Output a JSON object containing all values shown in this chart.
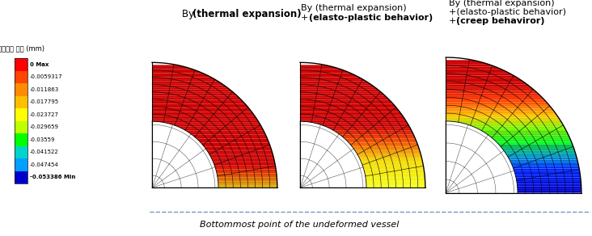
{
  "bg_color": "#ffffff",
  "colorbar_label": "수직방향 변위 (mm)",
  "colorbar_values": [
    "0 Max",
    "-0.0059317",
    "-0.011863",
    "-0.017795",
    "-0.023727",
    "-0.029659",
    "-0.03559",
    "-0.041522",
    "-0.047454",
    "-0.053386 Min"
  ],
  "colorbar_colors": [
    "#ff0000",
    "#ff4500",
    "#ff8c00",
    "#ffbf00",
    "#ffff00",
    "#bfff00",
    "#00ff00",
    "#00d4cc",
    "#00a0ff",
    "#0000cc"
  ],
  "bottom_label": "Bottommost point of the undeformed vessel",
  "dashed_line_color": "#6688bb",
  "panel1_title_normal": "By ",
  "panel1_title_bold": "(thermal expansion)",
  "panel2_title_line1": "By (thermal expansion)",
  "panel2_title_line2_prefix": "+",
  "panel2_title_line2_bold": "(elasto-plastic behavior)",
  "panel3_title_line1": "By (thermal expansion)",
  "panel3_title_line2": "+(elasto-plastic behavior)",
  "panel3_title_line3_prefix": "+",
  "panel3_title_line3_bold": "(creep behaviror)"
}
